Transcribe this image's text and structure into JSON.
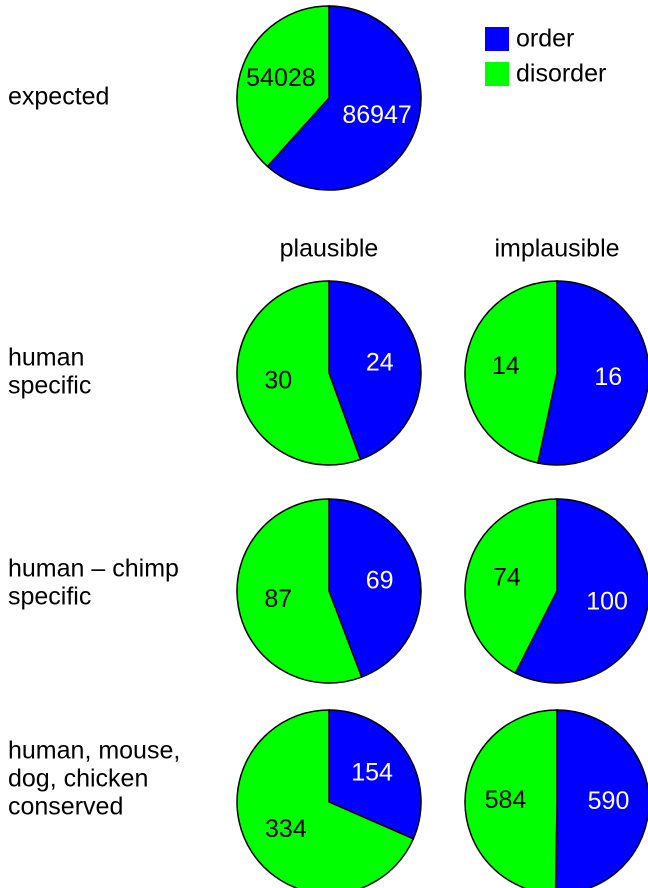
{
  "colors": {
    "order": "#0000ff",
    "disorder": "#00ff00",
    "outline": "#000000"
  },
  "chart_data": {
    "type": "pie",
    "title": "",
    "legend": {
      "placement": "top-right",
      "entries": [
        {
          "key": "order",
          "label": "order",
          "color": "#0000ff"
        },
        {
          "key": "disorder",
          "label": "disorder",
          "color": "#00ff00"
        }
      ]
    },
    "columns": [
      "plausible",
      "implausible"
    ],
    "rows": [
      {
        "label_lines": [
          "expected"
        ],
        "pies": [
          {
            "order": 86947,
            "disorder": 54028
          }
        ]
      },
      {
        "label_lines": [
          "human",
          "specific"
        ],
        "pies": [
          {
            "column": "plausible",
            "order": 24,
            "disorder": 30
          },
          {
            "column": "implausible",
            "order": 16,
            "disorder": 14
          }
        ]
      },
      {
        "label_lines": [
          "human – chimp",
          "specific"
        ],
        "pies": [
          {
            "column": "plausible",
            "order": 69,
            "disorder": 87
          },
          {
            "column": "implausible",
            "order": 100,
            "disorder": 74
          }
        ]
      },
      {
        "label_lines": [
          "human, mouse,",
          "dog, chicken",
          "conserved"
        ],
        "pies": [
          {
            "column": "plausible",
            "order": 154,
            "disorder": 334
          },
          {
            "column": "implausible",
            "order": 590,
            "disorder": 584
          }
        ]
      }
    ]
  }
}
